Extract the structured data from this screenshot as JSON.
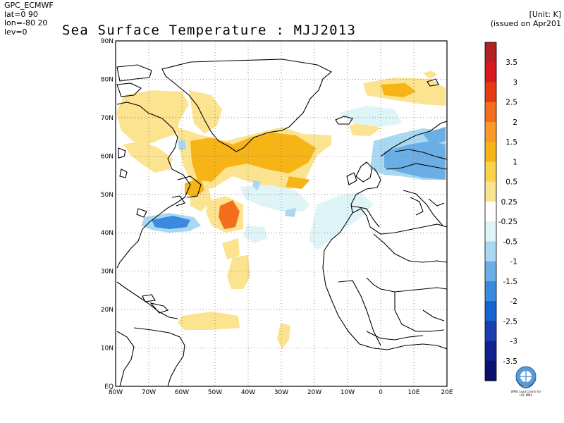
{
  "header": {
    "meta_lines": [
      "GPC_ECMWF",
      "lat=0 90",
      "lon=-80 20",
      "lev=0"
    ],
    "title": "Sea Surface Temperature : MJJ2013",
    "unit": "[Unit: K]",
    "issued": "(issued on Apr201"
  },
  "map": {
    "lat_labels": [
      "90N",
      "80N",
      "70N",
      "60N",
      "50N",
      "40N",
      "30N",
      "20N",
      "10N",
      "EQ"
    ],
    "lon_labels": [
      "80W",
      "70W",
      "60W",
      "50W",
      "40W",
      "30W",
      "20W",
      "10W",
      "0",
      "10E",
      "20E"
    ],
    "lat_range": [
      0,
      90
    ],
    "lon_range": [
      -80,
      20
    ],
    "grid": true
  },
  "colorbar": {
    "labels": [
      "3.5",
      "3",
      "2.5",
      "2",
      "1.5",
      "1",
      "0.5",
      "0.25",
      "-0.25",
      "-0.5",
      "-1",
      "-1.5",
      "-2",
      "-2.5",
      "-3",
      "-3.5"
    ],
    "colors": [
      "#b22222",
      "#d7191c",
      "#e53b15",
      "#f46d1b",
      "#fb9a29",
      "#f6b416",
      "#fcd24a",
      "#fbe38f",
      "#ffffff",
      "#dff4f7",
      "#a9d8f2",
      "#6baee6",
      "#3a8ae0",
      "#1763d4",
      "#1a3fb0",
      "#12218f",
      "#0b1070"
    ]
  },
  "anomalies": [
    {
      "name": "greenland-south-warm",
      "color": "#fbe38f"
    },
    {
      "name": "labrador-warm",
      "color": "#f6b416"
    },
    {
      "name": "gulfstream-warm",
      "color": "#f46d1b"
    },
    {
      "name": "gulfstream-cold",
      "color": "#3a8ae0"
    },
    {
      "name": "europe-cold",
      "color": "#6baee6"
    }
  ],
  "logo": {
    "caption_line1": "WMO Lead Centre for",
    "caption_line2": "LRF MME"
  }
}
